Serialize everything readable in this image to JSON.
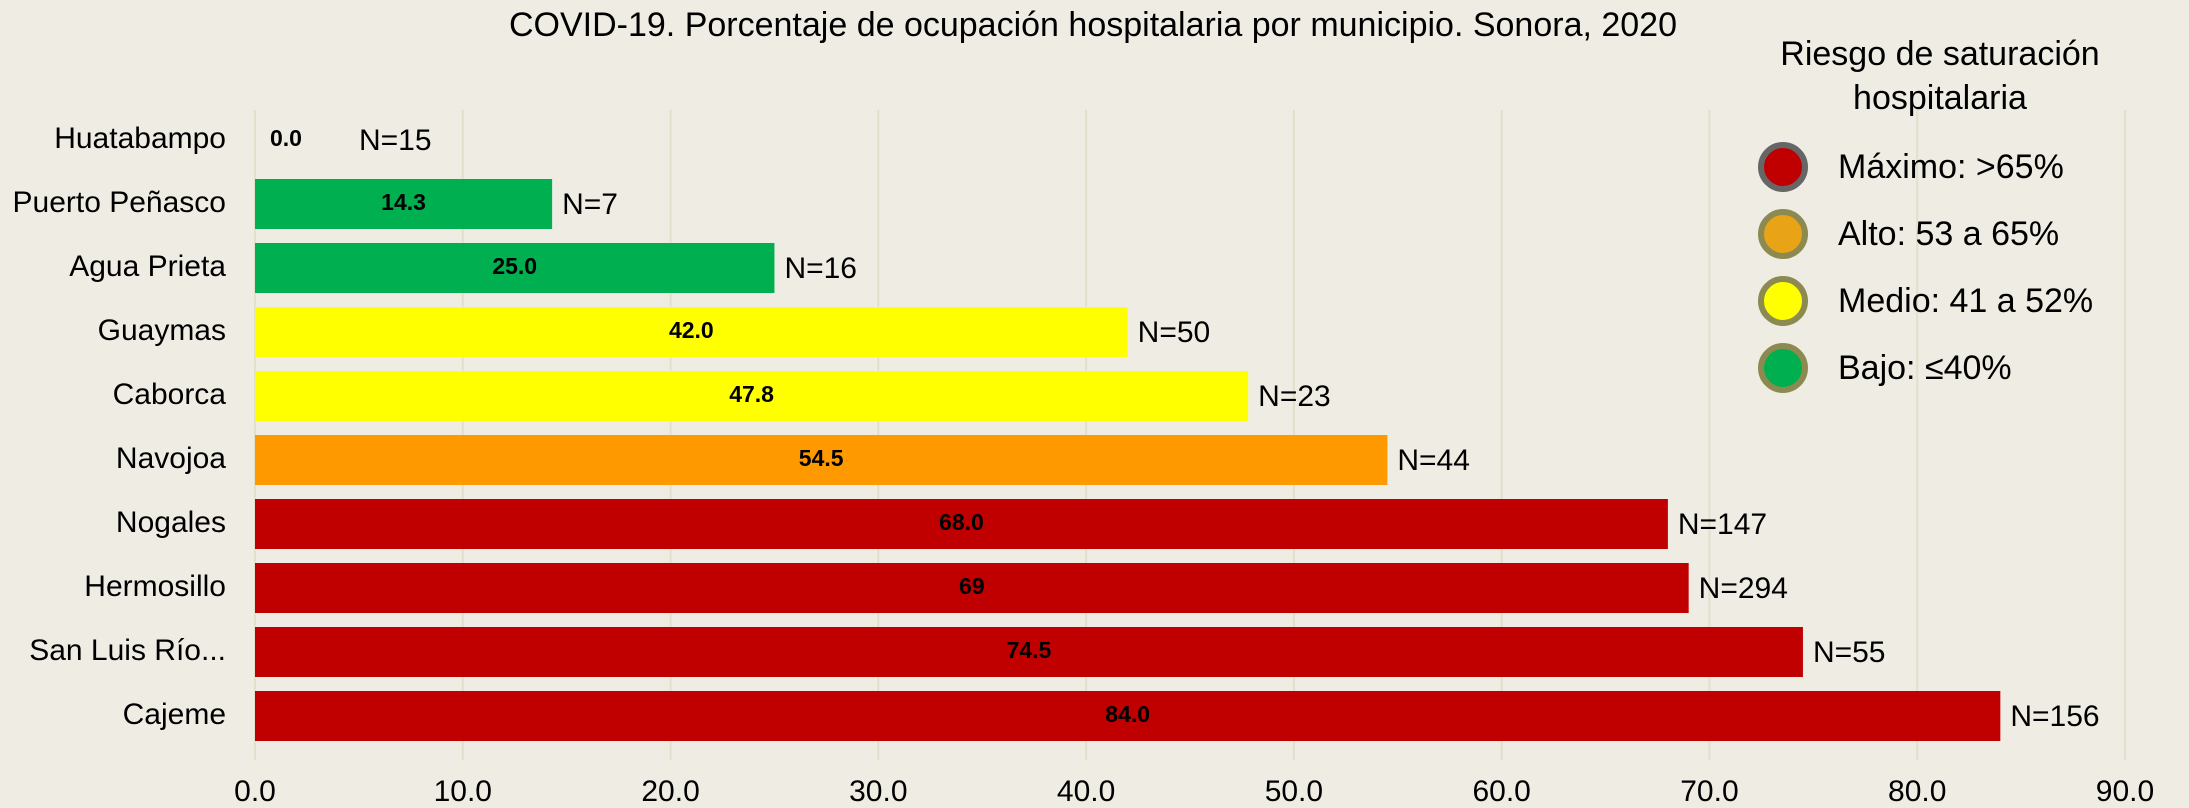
{
  "chart_data": {
    "type": "bar",
    "orientation": "horizontal",
    "title": "COVID-19. Porcentaje de ocupación hospitalaria por municipio. Sonora, 2020",
    "categories": [
      "Huatabampo",
      "Puerto Peñasco",
      "Agua Prieta",
      "Guaymas",
      "Caborca",
      "Navojoa",
      "Nogales",
      "Hermosillo",
      "San Luis Río...",
      "Cajeme"
    ],
    "values": [
      0,
      14.3,
      25,
      42,
      47.8,
      54.5,
      68,
      69,
      74.5,
      84
    ],
    "value_labels": [
      "0.0",
      "14.3",
      "25.0",
      "42.0",
      "47.8",
      "54.5",
      "68.0",
      "69",
      "74.5",
      "84.0"
    ],
    "colors": [
      "#00b050",
      "#00b050",
      "#00b050",
      "#ffff00",
      "#ffff00",
      "#ff9900",
      "#c00000",
      "#c00000",
      "#c00000",
      "#c00000"
    ],
    "annotations": [
      "N=15",
      "N=7",
      "N=16",
      "N=50",
      "N=23",
      "N=44",
      "N=147",
      "N=294",
      "N=55",
      "N=156"
    ],
    "xlim": [
      0,
      90
    ],
    "xticks": [
      {
        "value": 0,
        "label": "0.0"
      },
      {
        "value": 10,
        "label": "10.0"
      },
      {
        "value": 20,
        "label": "20.0"
      },
      {
        "value": 30,
        "label": "30.0"
      },
      {
        "value": 40,
        "label": "40.0"
      },
      {
        "value": 50,
        "label": "50.0"
      },
      {
        "value": 60,
        "label": "60.0"
      },
      {
        "value": 70,
        "label": "70.0"
      },
      {
        "value": 80,
        "label": "80.0"
      },
      {
        "value": 90,
        "label": "90.0"
      }
    ],
    "grid": true,
    "legend": {
      "title": [
        "Riesgo de saturación",
        "hospitalaria"
      ],
      "position": "upper right",
      "items": [
        {
          "label": "Máximo: >65%",
          "color": "#c00000"
        },
        {
          "label": "Alto: 53 a 65%",
          "color": "#e8a317"
        },
        {
          "label": "Medio: 41 a 52%",
          "color": "#ffff00"
        },
        {
          "label": "Bajo: ≤40%",
          "color": "#00b050"
        }
      ]
    }
  }
}
